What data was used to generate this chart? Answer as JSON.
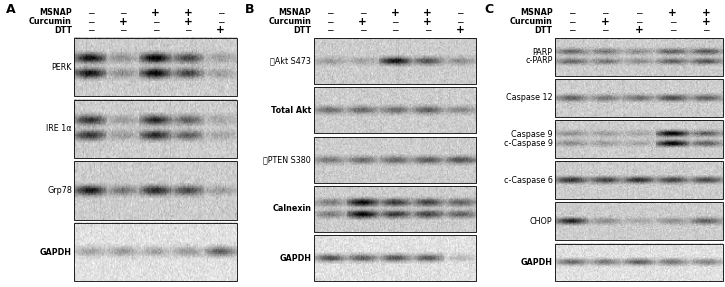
{
  "panel_A_label": "A",
  "panel_B_label": "B",
  "panel_C_label": "C",
  "panel_A_rows": [
    "PERK",
    "IRE 1α",
    "Grp78",
    "GAPDH"
  ],
  "panel_B_rows": [
    "ⓅAkt S473",
    "Total Akt",
    "ⓅPTEN S380",
    "Calnexin",
    "GAPDH"
  ],
  "panel_C_rows_top": [
    "PARP",
    "c-PARP"
  ],
  "panel_C_rows": [
    "PARP/c-PARP",
    "Caspase 12",
    "Caspase 9/c-Caspase 9",
    "c-Caspase 6",
    "CHOP",
    "GAPDH"
  ],
  "panel_C_labels": [
    [
      "PARP",
      "c-PARP"
    ],
    [
      "Caspase 12"
    ],
    [
      "Caspase 9",
      "c-Caspase 9"
    ],
    [
      "c-Caspase 6"
    ],
    [
      "CHOP"
    ],
    [
      "GAPDH"
    ]
  ],
  "header_labels": [
    "MSNAP",
    "Curcumin",
    "DTT"
  ],
  "col_signs_A": [
    [
      "−",
      "−",
      "+",
      "+",
      "−"
    ],
    [
      "−",
      "+",
      "−",
      "+",
      "−"
    ],
    [
      "−",
      "−",
      "−",
      "−",
      "+"
    ]
  ],
  "col_signs_B": [
    [
      "−",
      "−",
      "+",
      "+",
      "−"
    ],
    [
      "−",
      "+",
      "−",
      "+",
      "−"
    ],
    [
      "−",
      "−",
      "−",
      "−",
      "+"
    ]
  ],
  "col_signs_C": [
    [
      "−",
      "−",
      "−",
      "+",
      "+"
    ],
    [
      "−",
      "+",
      "−",
      "−",
      "+"
    ],
    [
      "−",
      "−",
      "+",
      "−",
      "−"
    ]
  ],
  "bg_color": "#ffffff",
  "blot_bg_light": "#e8e8e8",
  "blot_bg_dark": "#b0b0b0",
  "band_dark": "#1a1a1a",
  "border_color": "#000000",
  "blot_data_A": {
    "PERK": [
      0.82,
      0.28,
      0.88,
      0.6,
      0.22
    ],
    "IRE 1α": [
      0.68,
      0.22,
      0.72,
      0.48,
      0.18
    ],
    "Grp78": [
      0.78,
      0.38,
      0.72,
      0.58,
      0.22
    ],
    "GAPDH": [
      0.28,
      0.32,
      0.28,
      0.32,
      0.58
    ]
  },
  "blot_data_B": {
    "ⓅAkt S473": [
      0.22,
      0.18,
      0.8,
      0.52,
      0.28
    ],
    "Total Akt": [
      0.42,
      0.45,
      0.42,
      0.48,
      0.32
    ],
    "ⓅPTEN S380": [
      0.38,
      0.42,
      0.45,
      0.5,
      0.55
    ],
    "Calnexin": [
      0.35,
      0.88,
      0.65,
      0.62,
      0.48
    ],
    "GAPDH": [
      0.62,
      0.58,
      0.62,
      0.58,
      0.18
    ]
  },
  "blot_data_C": {
    "PARP/c-PARP": [
      0.45,
      0.38,
      0.28,
      0.48,
      0.52
    ],
    "Caspase 12": [
      0.48,
      0.38,
      0.42,
      0.58,
      0.48
    ],
    "Caspase 9/c-Caspase 9": [
      0.28,
      0.22,
      0.18,
      0.88,
      0.48
    ],
    "c-Caspase 6": [
      0.68,
      0.62,
      0.68,
      0.62,
      0.58
    ],
    "CHOP": [
      0.72,
      0.28,
      0.18,
      0.28,
      0.48
    ],
    "GAPDH": [
      0.52,
      0.48,
      0.58,
      0.48,
      0.42
    ]
  }
}
